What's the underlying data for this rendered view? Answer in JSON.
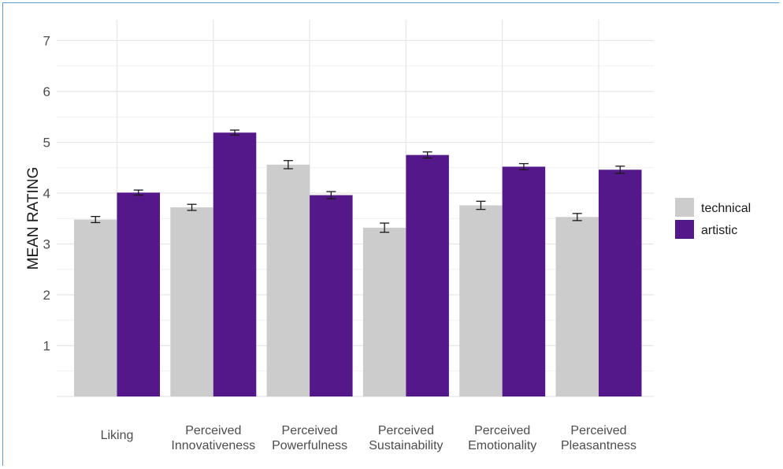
{
  "chart_data": {
    "type": "bar",
    "ylabel": "MEAN RATING",
    "xlabel": "",
    "ylim": [
      0,
      7.3
    ],
    "yticks": [
      1,
      2,
      3,
      4,
      5,
      6,
      7
    ],
    "grid": true,
    "legend_position": "right",
    "categories": [
      [
        "Liking"
      ],
      [
        "Perceived",
        "Innovativeness"
      ],
      [
        "Perceived",
        "Powerfulness"
      ],
      [
        "Perceived",
        "Sustainability"
      ],
      [
        "Perceived",
        "Emotionality"
      ],
      [
        "Perceived",
        "Pleasantness"
      ]
    ],
    "series": [
      {
        "name": "technical",
        "color": "#cccccc",
        "values": [
          3.48,
          3.72,
          4.56,
          3.32,
          3.76,
          3.53
        ],
        "errors": [
          0.06,
          0.06,
          0.08,
          0.09,
          0.08,
          0.07
        ]
      },
      {
        "name": "artistic",
        "color": "#54188a",
        "values": [
          4.01,
          5.19,
          3.96,
          4.75,
          4.52,
          4.46
        ],
        "errors": [
          0.05,
          0.05,
          0.07,
          0.06,
          0.06,
          0.07
        ]
      }
    ]
  }
}
